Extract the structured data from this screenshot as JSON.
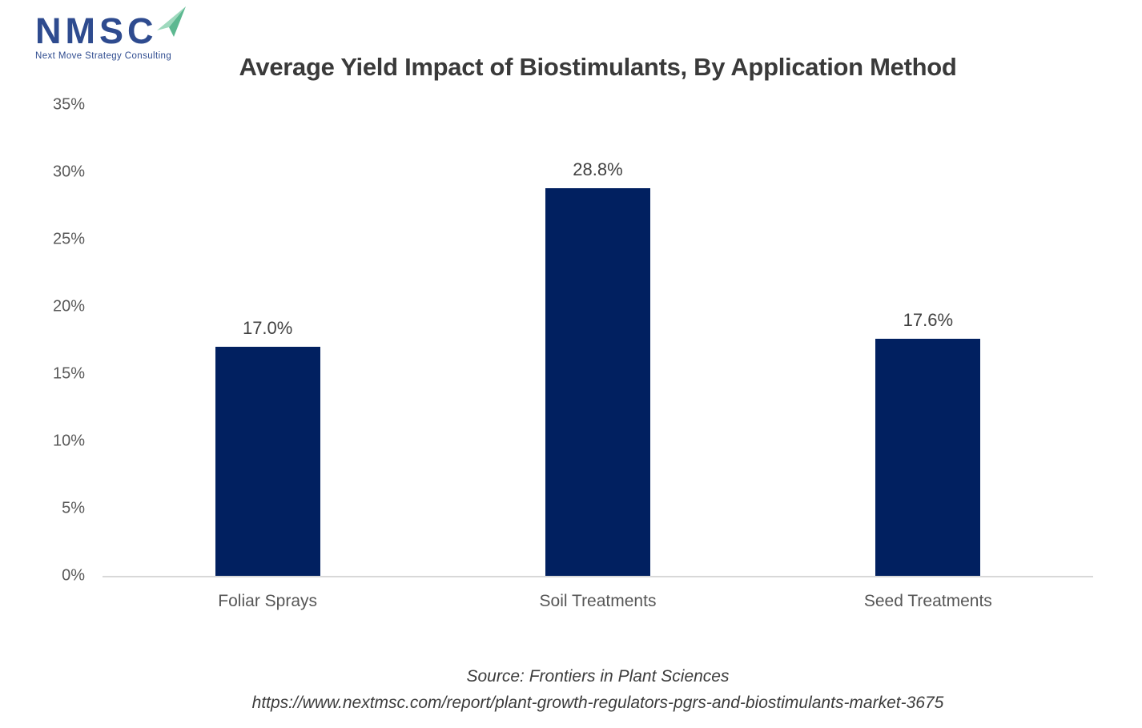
{
  "logo": {
    "acronym": "NMSC",
    "tagline": "Next Move Strategy Consulting",
    "colors": {
      "blue": "#2e4b8f",
      "green_light": "#9ed9bd",
      "green_dark": "#5cb890"
    }
  },
  "chart_data": {
    "type": "bar",
    "title": "Average Yield Impact of Biostimulants, By Application Method",
    "categories": [
      "Foliar Sprays",
      "Soil Treatments",
      "Seed Treatments"
    ],
    "values": [
      17.0,
      28.8,
      17.6
    ],
    "value_labels": [
      "17.0%",
      "28.8%",
      "17.6%"
    ],
    "xlabel": "",
    "ylabel": "",
    "ylim": [
      0,
      35
    ],
    "ytick_step": 5,
    "ytick_labels": [
      "0%",
      "5%",
      "10%",
      "15%",
      "20%",
      "25%",
      "30%",
      "35%"
    ],
    "grid": false,
    "legend": false,
    "bar_color": "#012060",
    "axis_line_color": "#d8d8d8"
  },
  "footer": {
    "source_line": "Source: Frontiers in Plant Sciences",
    "url_line": "https://www.nextmsc.com/report/plant-growth-regulators-pgrs-and-biostimulants-market-3675"
  }
}
